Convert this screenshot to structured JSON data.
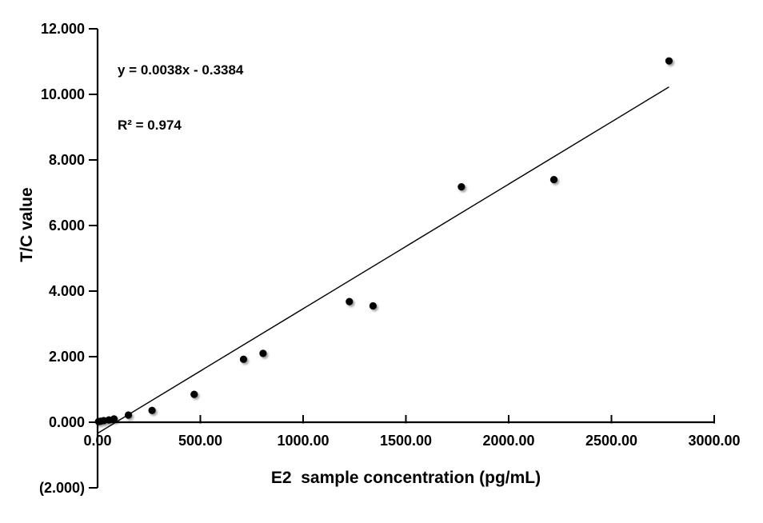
{
  "chart_data": {
    "type": "scatter",
    "title": "",
    "xlabel": "E2  sample concentration (pg/mL)",
    "ylabel": "T/C value",
    "annotation": {
      "equation": "y = 0.0038x - 0.3384",
      "r_squared": "R² = 0.974"
    },
    "xlim": [
      0,
      3000
    ],
    "ylim": [
      -2,
      12
    ],
    "grid": false,
    "legend": null,
    "x_ticks": [
      {
        "value": 0,
        "label": "0.00"
      },
      {
        "value": 500,
        "label": "500.00"
      },
      {
        "value": 1000,
        "label": "1000.00"
      },
      {
        "value": 1500,
        "label": "1500.00"
      },
      {
        "value": 2000,
        "label": "2000.00"
      },
      {
        "value": 2500,
        "label": "2500.00"
      },
      {
        "value": 3000,
        "label": "3000.00"
      }
    ],
    "y_ticks": [
      {
        "value": 12,
        "label": "12.000",
        "color": "#000000"
      },
      {
        "value": 10,
        "label": "10.000",
        "color": "#000000"
      },
      {
        "value": 8,
        "label": "8.000",
        "color": "#000000"
      },
      {
        "value": 6,
        "label": "6.000",
        "color": "#000000"
      },
      {
        "value": 4,
        "label": "4.000",
        "color": "#000000"
      },
      {
        "value": 2,
        "label": "2.000",
        "color": "#000000"
      },
      {
        "value": 0,
        "label": "0.000",
        "color": "#000000"
      },
      {
        "value": -2,
        "label": "(2.000)",
        "color": "#FF0000"
      }
    ],
    "points": [
      [
        5,
        0.02
      ],
      [
        15,
        0.03
      ],
      [
        30,
        0.05
      ],
      [
        55,
        0.07
      ],
      [
        80,
        0.1
      ],
      [
        150,
        0.22
      ],
      [
        265,
        0.36
      ],
      [
        470,
        0.85
      ],
      [
        710,
        1.92
      ],
      [
        805,
        2.1
      ],
      [
        1225,
        3.68
      ],
      [
        1340,
        3.55
      ],
      [
        1770,
        7.18
      ],
      [
        2220,
        7.4
      ],
      [
        2780,
        11.02
      ]
    ],
    "trendline": {
      "slope": 0.0038,
      "intercept": -0.3384,
      "x_start": 0,
      "x_end": 2780
    },
    "marker_color": "#000000",
    "line_color": "#000000",
    "axis_color": "#000000",
    "negative_tick_color": "#FF0000",
    "background_color": "#FFFFFF"
  }
}
